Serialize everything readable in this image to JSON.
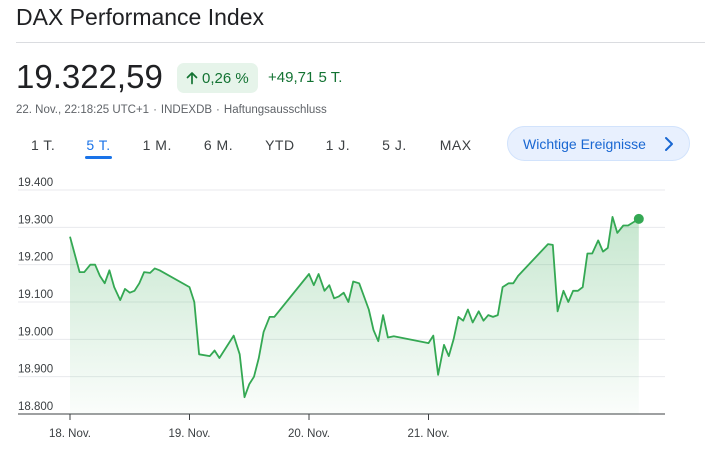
{
  "header": {
    "title": "DAX Performance Index"
  },
  "quote": {
    "price": "19.322,59",
    "change_pct": "0,26 %",
    "change_abs": "+49,71 5 T.",
    "timestamp": "22. Nov., 22:18:25 UTC+1",
    "exchange": "INDEXDB",
    "disclaimer": "Haftungsausschluss",
    "separator": "·",
    "up_color": "#137333",
    "up_bg": "#e6f4ea"
  },
  "range_tabs": [
    {
      "label": "1 T.",
      "active": false
    },
    {
      "label": "5 T.",
      "active": true
    },
    {
      "label": "1 M.",
      "active": false
    },
    {
      "label": "6 M.",
      "active": false
    },
    {
      "label": "YTD",
      "active": false
    },
    {
      "label": "1 J.",
      "active": false
    },
    {
      "label": "5 J.",
      "active": false
    },
    {
      "label": "MAX",
      "active": false
    }
  ],
  "events_button": {
    "label": "Wichtige Ereignisse",
    "icon": "chevron-right-icon"
  },
  "chart_data": {
    "type": "area",
    "title": "",
    "xlabel": "",
    "ylabel": "",
    "line_color": "#34a853",
    "fill_color": "#34a853",
    "grid": true,
    "ylim": [
      18800,
      19400
    ],
    "xlim": [
      0,
      5
    ],
    "y_ticks": [
      19400,
      19300,
      19200,
      19100,
      19000,
      18900,
      18800
    ],
    "y_tick_labels": [
      "19.400",
      "19.300",
      "19.200",
      "19.100",
      "19.000",
      "18.900",
      "18.800"
    ],
    "x_ticks": [
      0,
      1,
      2,
      3
    ],
    "x_tick_labels": [
      "18. Nov.",
      "19. Nov.",
      "20. Nov.",
      "21. Nov."
    ],
    "series": [
      {
        "values": [
          [
            0.0,
            19275
          ],
          [
            0.08,
            19180
          ],
          [
            0.12,
            19180
          ],
          [
            0.17,
            19200
          ],
          [
            0.21,
            19200
          ],
          [
            0.25,
            19170
          ],
          [
            0.29,
            19150
          ],
          [
            0.33,
            19185
          ],
          [
            0.37,
            19140
          ],
          [
            0.42,
            19105
          ],
          [
            0.46,
            19135
          ],
          [
            0.5,
            19125
          ],
          [
            0.54,
            19130
          ],
          [
            0.58,
            19150
          ],
          [
            0.62,
            19180
          ],
          [
            0.67,
            19178
          ],
          [
            0.71,
            19190
          ],
          [
            0.75,
            19185
          ],
          [
            1.0,
            19140
          ],
          [
            1.04,
            19100
          ],
          [
            1.08,
            18960
          ],
          [
            1.17,
            18955
          ],
          [
            1.21,
            18970
          ],
          [
            1.25,
            18950
          ],
          [
            1.37,
            19010
          ],
          [
            1.42,
            18960
          ],
          [
            1.46,
            18845
          ],
          [
            1.5,
            18880
          ],
          [
            1.54,
            18900
          ],
          [
            1.58,
            18950
          ],
          [
            1.62,
            19020
          ],
          [
            1.67,
            19060
          ],
          [
            1.71,
            19060
          ],
          [
            2.0,
            19175
          ],
          [
            2.04,
            19145
          ],
          [
            2.08,
            19175
          ],
          [
            2.13,
            19130
          ],
          [
            2.17,
            19145
          ],
          [
            2.21,
            19110
          ],
          [
            2.25,
            19115
          ],
          [
            2.29,
            19125
          ],
          [
            2.33,
            19100
          ],
          [
            2.37,
            19155
          ],
          [
            2.42,
            19150
          ],
          [
            2.5,
            19080
          ],
          [
            2.54,
            19025
          ],
          [
            2.58,
            18995
          ],
          [
            2.62,
            19065
          ],
          [
            2.66,
            19005
          ],
          [
            2.71,
            19008
          ],
          [
            3.0,
            18990
          ],
          [
            3.04,
            19010
          ],
          [
            3.08,
            18905
          ],
          [
            3.13,
            18985
          ],
          [
            3.17,
            18955
          ],
          [
            3.21,
            19000
          ],
          [
            3.25,
            19060
          ],
          [
            3.29,
            19050
          ],
          [
            3.33,
            19080
          ],
          [
            3.37,
            19045
          ],
          [
            3.42,
            19075
          ],
          [
            3.46,
            19050
          ],
          [
            3.5,
            19065
          ],
          [
            3.54,
            19060
          ],
          [
            3.58,
            19065
          ],
          [
            3.62,
            19140
          ],
          [
            3.67,
            19150
          ],
          [
            3.71,
            19150
          ],
          [
            3.75,
            19170
          ],
          [
            4.0,
            19255
          ],
          [
            4.04,
            19253
          ],
          [
            4.08,
            19075
          ],
          [
            4.13,
            19130
          ],
          [
            4.17,
            19100
          ],
          [
            4.21,
            19130
          ],
          [
            4.25,
            19130
          ],
          [
            4.29,
            19140
          ],
          [
            4.33,
            19230
          ],
          [
            4.37,
            19230
          ],
          [
            4.42,
            19265
          ],
          [
            4.46,
            19235
          ],
          [
            4.5,
            19245
          ],
          [
            4.54,
            19328
          ],
          [
            4.58,
            19285
          ],
          [
            4.63,
            19305
          ],
          [
            4.67,
            19305
          ],
          [
            4.76,
            19322.59
          ]
        ]
      }
    ]
  }
}
